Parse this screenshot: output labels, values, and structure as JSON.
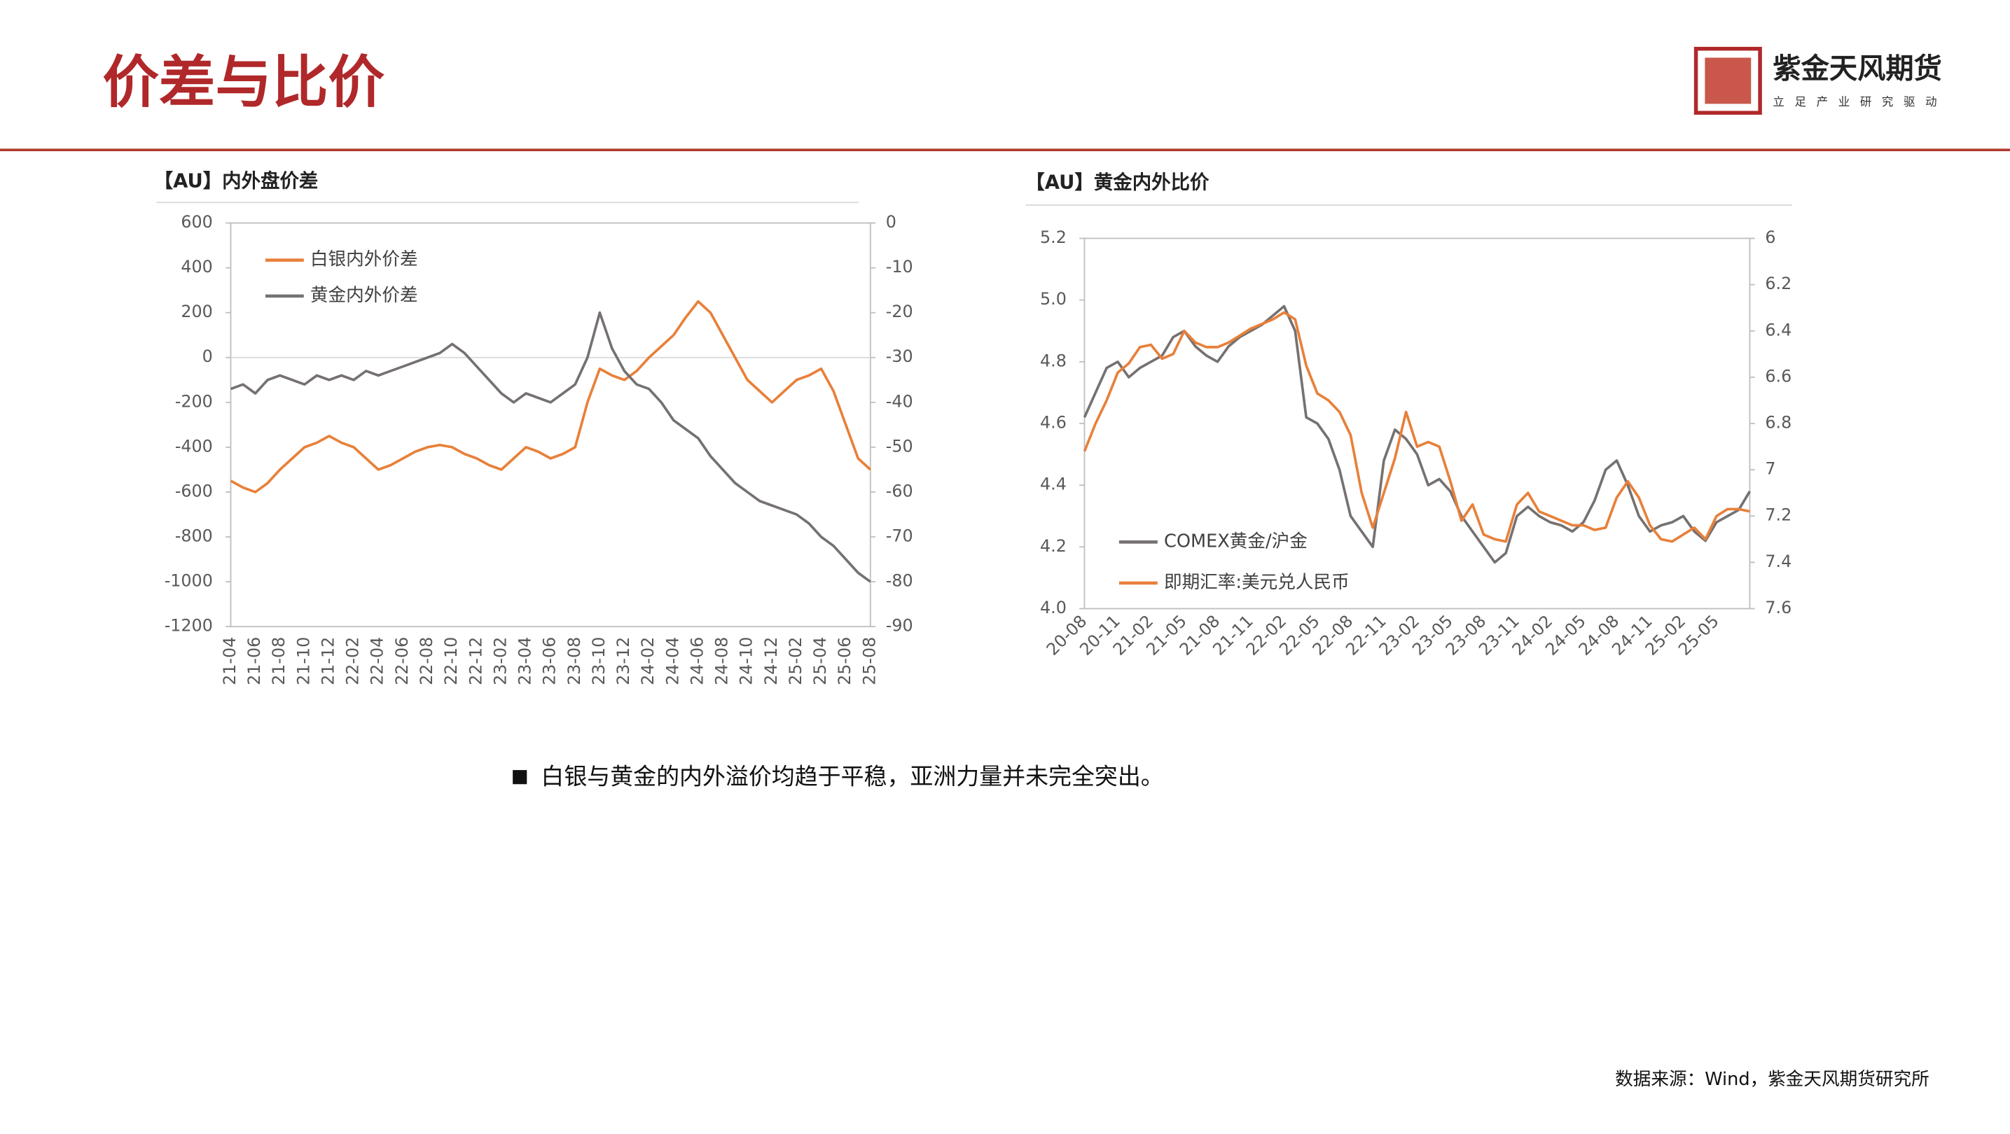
{
  "header": {
    "title": "价差与比价",
    "brand": "紫金天风期货",
    "slogan": "立足产业研究驱动"
  },
  "chart_data": [
    {
      "type": "line",
      "title": "【AU】内外盘价差",
      "legend": "upper left",
      "categories": [
        "21-04",
        null,
        "21-06",
        null,
        "21-08",
        null,
        "21-10",
        null,
        "21-12",
        null,
        "22-02",
        null,
        "22-04",
        null,
        "22-06",
        null,
        "22-08",
        null,
        "22-10",
        null,
        "22-12",
        null,
        "23-02",
        null,
        "23-04",
        null,
        "23-06",
        null,
        "23-08",
        null,
        "23-10",
        null,
        "23-12",
        null,
        "24-02",
        null,
        "24-04",
        null,
        "24-06",
        null,
        "24-08",
        null,
        "24-10",
        null,
        "24-12",
        null,
        "25-02",
        null,
        "25-04",
        null,
        "25-06",
        null,
        "25-08"
      ],
      "ylim": [
        -1200,
        600
      ],
      "yticks": [
        600,
        400,
        200,
        0,
        -200,
        -400,
        -600,
        -800,
        -1000,
        -1200
      ],
      "y2lim": [
        -90,
        0
      ],
      "y2ticks": [
        0,
        -10,
        -20,
        -30,
        -40,
        -50,
        -60,
        -70,
        -80,
        -90
      ],
      "series": [
        {
          "name": "白银内外价差",
          "color": "#e8803a",
          "axis": "y",
          "values": [
            -550,
            -580,
            -600,
            -560,
            -500,
            -450,
            -400,
            -380,
            -350,
            -380,
            -400,
            -450,
            -500,
            -480,
            -450,
            -420,
            -400,
            -390,
            -400,
            -430,
            -450,
            -480,
            -500,
            -450,
            -400,
            -420,
            -450,
            -430,
            -400,
            -200,
            -50,
            -80,
            -100,
            -60,
            0,
            50,
            100,
            180,
            250,
            200,
            100,
            0,
            -100,
            -150,
            -200,
            -150,
            -100,
            -80,
            -50,
            -150,
            -300,
            -450,
            -500
          ]
        },
        {
          "name": "黄金内外价差",
          "color": "#767171",
          "axis": "y2",
          "values": [
            -37,
            -36,
            -38,
            -35,
            -34,
            -35,
            -36,
            -34,
            -35,
            -34,
            -35,
            -33,
            -34,
            -33,
            -32,
            -31,
            -30,
            -29,
            -27,
            -29,
            -32,
            -35,
            -38,
            -40,
            -38,
            -39,
            -40,
            -38,
            -36,
            -30,
            -20,
            -28,
            -33,
            -36,
            -37,
            -40,
            -44,
            -46,
            -48,
            -52,
            -55,
            -58,
            -60,
            -62,
            -63,
            -64,
            -65,
            -67,
            -70,
            -72,
            -75,
            -78,
            -80
          ]
        }
      ]
    },
    {
      "type": "line",
      "title": "【AU】黄金内外比价",
      "legend": "lower left",
      "categories": [
        "20-08",
        null,
        null,
        "20-11",
        null,
        null,
        "21-02",
        null,
        null,
        "21-05",
        null,
        null,
        "21-08",
        null,
        null,
        "21-11",
        null,
        null,
        "22-02",
        null,
        null,
        "22-05",
        null,
        null,
        "22-08",
        null,
        null,
        "22-11",
        null,
        null,
        "23-02",
        null,
        null,
        "23-05",
        null,
        null,
        "23-08",
        null,
        null,
        "23-11",
        null,
        null,
        "24-02",
        null,
        null,
        "24-05",
        null,
        null,
        "24-08",
        null,
        null,
        "24-11",
        null,
        null,
        "25-02",
        null,
        null,
        "25-05",
        null,
        null,
        null
      ],
      "ylim": [
        4,
        5.2
      ],
      "yticks": [
        {
          "value": 4,
          "label": "4.0"
        },
        4.2,
        4.4,
        4.6,
        4.8,
        {
          "value": 5,
          "label": "5.0"
        },
        5.2
      ],
      "y2lim": [
        7.6,
        6
      ],
      "y2ticks": [
        6,
        6.2,
        6.4,
        6.6,
        6.8,
        7,
        7.2,
        7.4,
        7.6
      ],
      "series": [
        {
          "name": "COMEX黄金/沪金",
          "color": "#767171",
          "axis": "y",
          "values": [
            4.62,
            4.7,
            4.78,
            4.8,
            4.75,
            4.78,
            4.8,
            4.82,
            4.88,
            4.9,
            4.85,
            4.82,
            4.8,
            4.85,
            4.88,
            4.9,
            4.92,
            4.95,
            4.98,
            4.9,
            4.62,
            4.6,
            4.55,
            4.45,
            4.3,
            4.25,
            4.2,
            4.48,
            4.58,
            4.55,
            4.5,
            4.4,
            4.42,
            4.38,
            4.3,
            4.25,
            4.2,
            4.15,
            4.18,
            4.3,
            4.33,
            4.3,
            4.28,
            4.27,
            4.25,
            4.28,
            4.35,
            4.45,
            4.48,
            4.4,
            4.3,
            4.25,
            4.27,
            4.28,
            4.3,
            4.25,
            4.22,
            4.28,
            4.3,
            4.32,
            4.38
          ]
        },
        {
          "name": "即期汇率:美元兑人民币",
          "color": "#e8803a",
          "axis": "y2",
          "values": [
            6.92,
            6.8,
            6.7,
            6.58,
            6.54,
            6.47,
            6.46,
            6.52,
            6.5,
            6.4,
            6.45,
            6.47,
            6.47,
            6.45,
            6.42,
            6.39,
            6.37,
            6.35,
            6.32,
            6.35,
            6.55,
            6.67,
            6.7,
            6.75,
            6.85,
            7.1,
            7.25,
            7.1,
            6.95,
            6.75,
            6.9,
            6.88,
            6.9,
            7.05,
            7.22,
            7.15,
            7.28,
            7.3,
            7.31,
            7.15,
            7.1,
            7.18,
            7.2,
            7.22,
            7.24,
            7.24,
            7.26,
            7.25,
            7.12,
            7.05,
            7.12,
            7.24,
            7.3,
            7.31,
            7.28,
            7.25,
            7.3,
            7.2,
            7.17,
            7.17,
            7.18
          ]
        }
      ]
    }
  ],
  "note": "白银与黄金的内外溢价均趋于平稳，亚洲力量并未完全突出。",
  "source": "数据来源：Wind，紫金天风期货研究所"
}
